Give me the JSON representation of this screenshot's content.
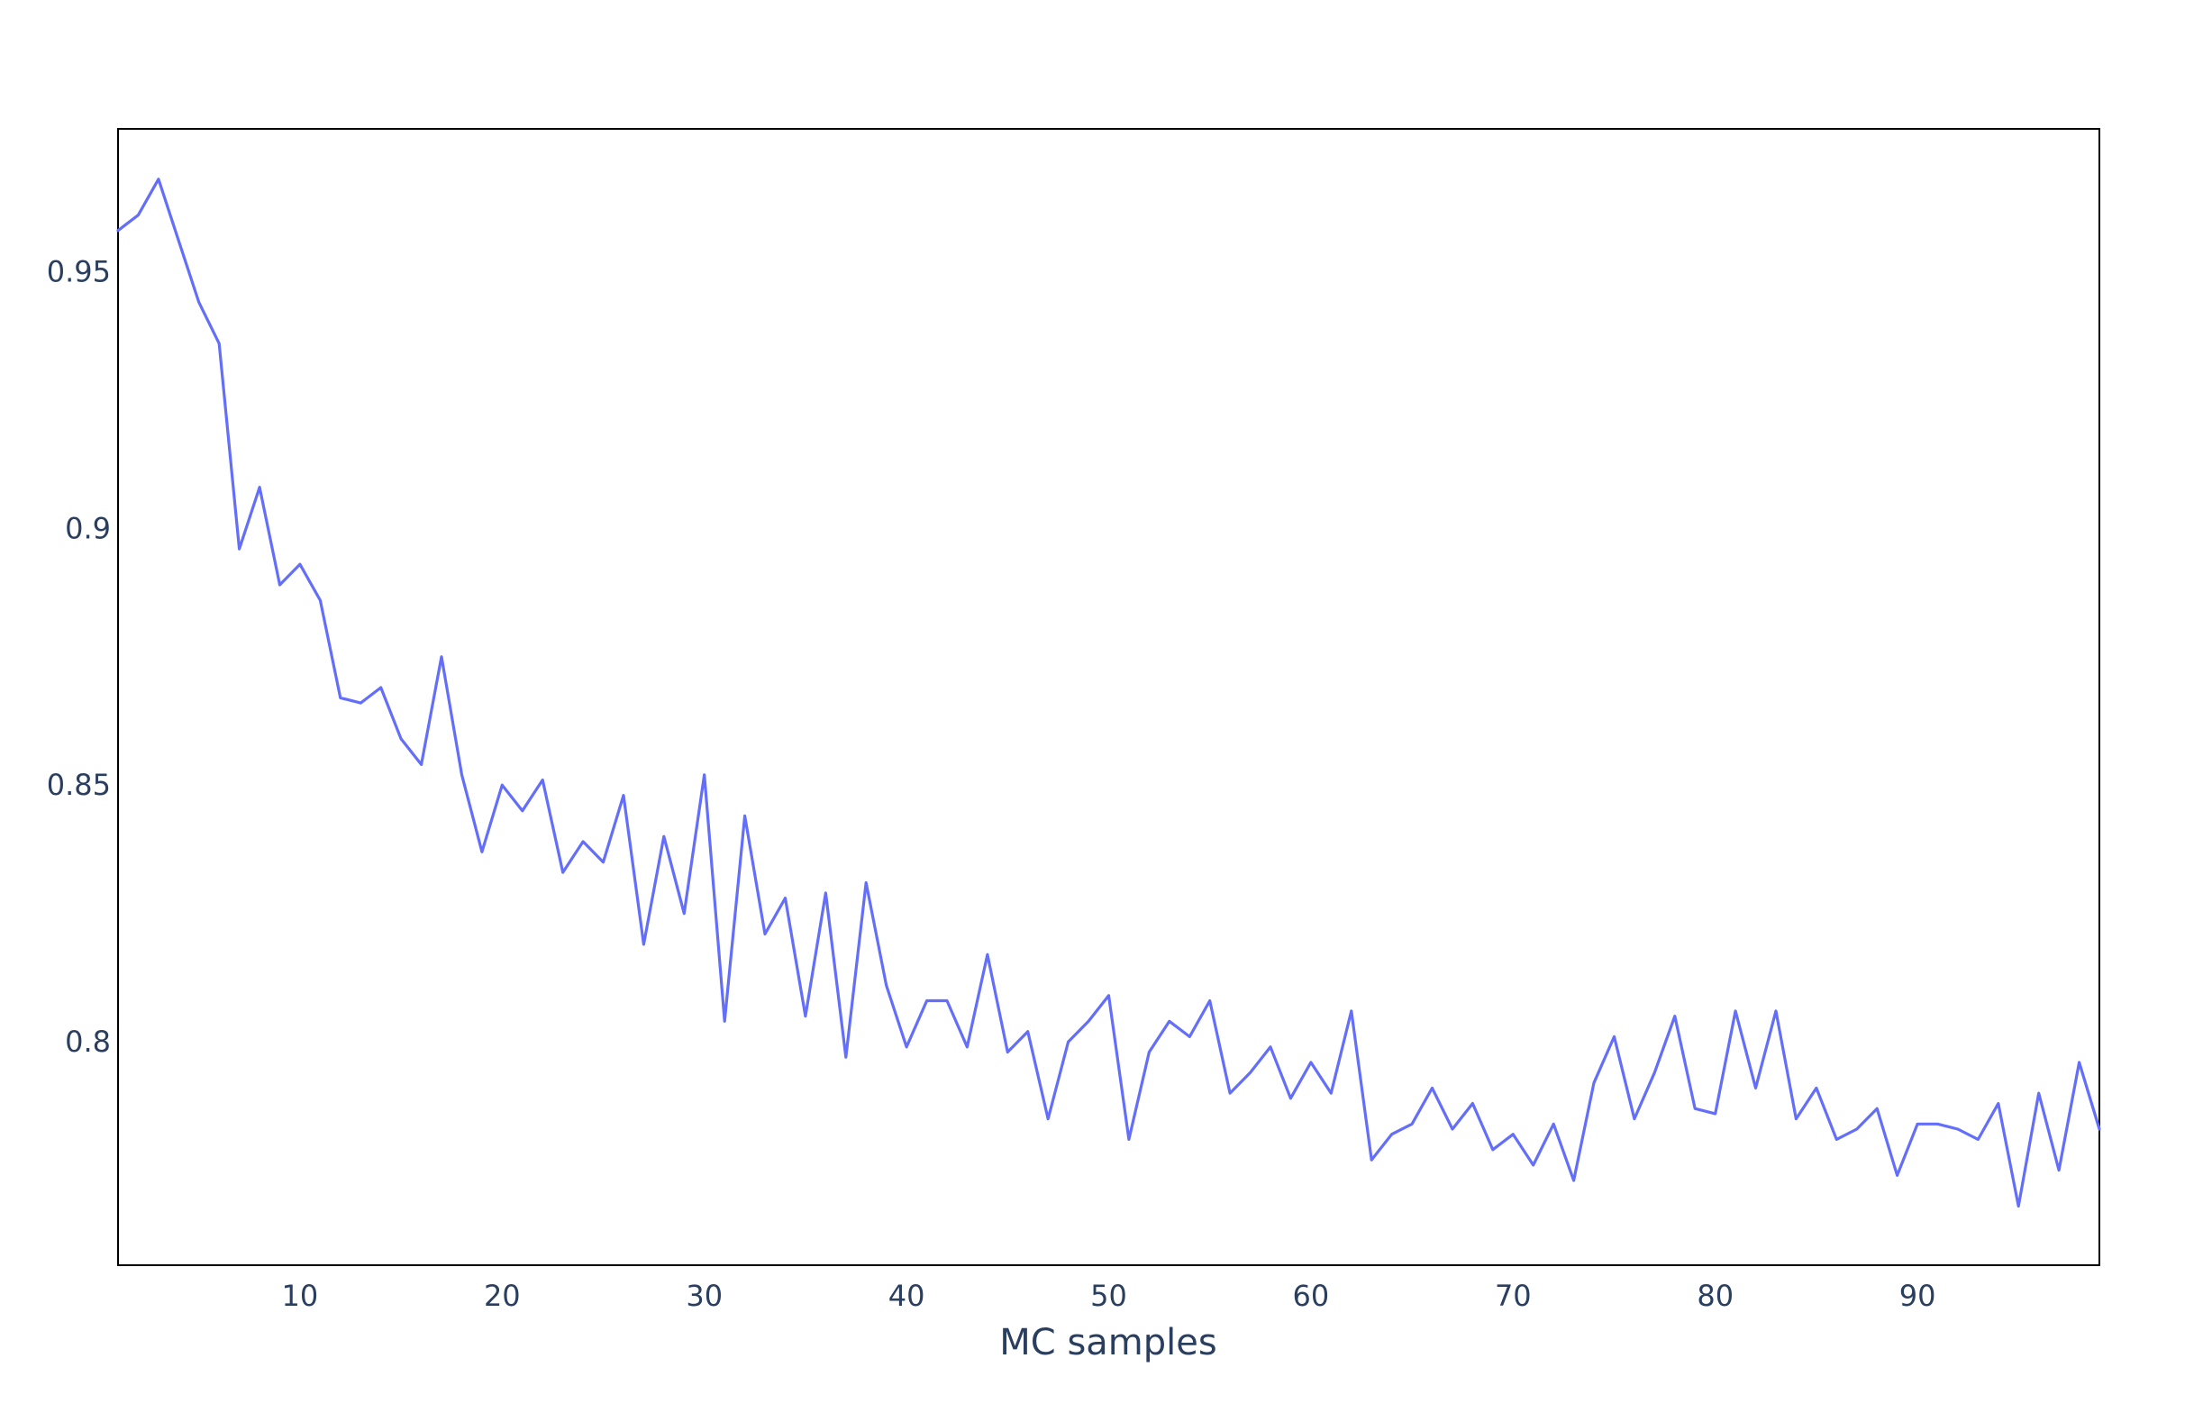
{
  "chart_data": {
    "type": "line",
    "title": "",
    "xlabel": "MC samples",
    "ylabel": "",
    "xlim": [
      1,
      99
    ],
    "ylim": [
      0.7565,
      0.9778
    ],
    "xticks": [
      10,
      20,
      30,
      40,
      50,
      60,
      70,
      80,
      90
    ],
    "xtick_labels": [
      "10",
      "20",
      "30",
      "40",
      "50",
      "60",
      "70",
      "80",
      "90"
    ],
    "yticks": [
      0.8,
      0.85,
      0.9,
      0.95
    ],
    "ytick_labels": [
      "0.8",
      "0.85",
      "0.9",
      "0.95"
    ],
    "grid": false,
    "legend": "none",
    "series": [
      {
        "color": "#636efa",
        "x": [
          1,
          2,
          3,
          4,
          5,
          6,
          7,
          8,
          9,
          10,
          11,
          12,
          13,
          14,
          15,
          16,
          17,
          18,
          19,
          20,
          21,
          22,
          23,
          24,
          25,
          26,
          27,
          28,
          29,
          30,
          31,
          32,
          33,
          34,
          35,
          36,
          37,
          38,
          39,
          40,
          41,
          42,
          43,
          44,
          45,
          46,
          47,
          48,
          49,
          50,
          51,
          52,
          53,
          54,
          55,
          56,
          57,
          58,
          59,
          60,
          61,
          62,
          63,
          64,
          65,
          66,
          67,
          68,
          69,
          70,
          71,
          72,
          73,
          74,
          75,
          76,
          77,
          78,
          79,
          80,
          81,
          82,
          83,
          84,
          85,
          86,
          87,
          88,
          89,
          90,
          91,
          92,
          93,
          94,
          95,
          96,
          97,
          98,
          99
        ],
        "values": [
          0.958,
          0.961,
          0.968,
          0.956,
          0.944,
          0.936,
          0.896,
          0.908,
          0.889,
          0.893,
          0.886,
          0.867,
          0.866,
          0.869,
          0.859,
          0.854,
          0.875,
          0.852,
          0.837,
          0.85,
          0.845,
          0.851,
          0.833,
          0.839,
          0.835,
          0.848,
          0.819,
          0.84,
          0.825,
          0.852,
          0.804,
          0.844,
          0.821,
          0.828,
          0.805,
          0.829,
          0.797,
          0.831,
          0.811,
          0.799,
          0.808,
          0.808,
          0.799,
          0.817,
          0.798,
          0.802,
          0.785,
          0.8,
          0.804,
          0.809,
          0.781,
          0.798,
          0.804,
          0.801,
          0.808,
          0.79,
          0.794,
          0.799,
          0.789,
          0.796,
          0.79,
          0.806,
          0.777,
          0.782,
          0.784,
          0.791,
          0.783,
          0.788,
          0.779,
          0.782,
          0.776,
          0.784,
          0.773,
          0.792,
          0.801,
          0.785,
          0.794,
          0.805,
          0.787,
          0.786,
          0.806,
          0.791,
          0.806,
          0.785,
          0.791,
          0.781,
          0.783,
          0.787,
          0.774,
          0.784,
          0.784,
          0.783,
          0.781,
          0.788,
          0.768,
          0.79,
          0.775,
          0.796,
          0.783
        ]
      }
    ]
  }
}
